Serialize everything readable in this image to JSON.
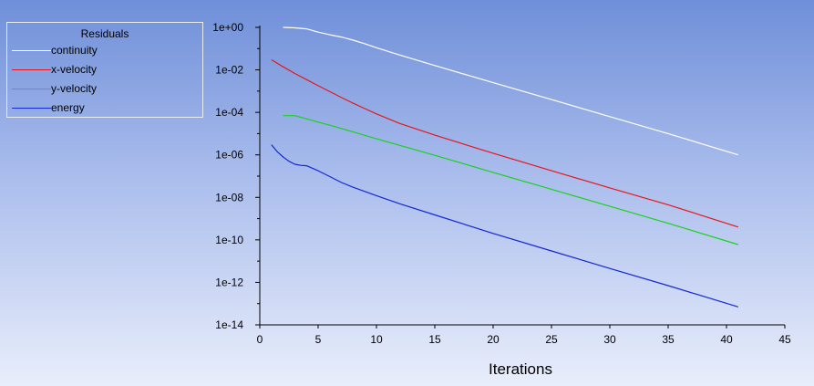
{
  "chart_data": {
    "type": "line",
    "title": "",
    "xlabel": "Iterations",
    "ylabel": "",
    "yscale": "log",
    "xlim": [
      0,
      45
    ],
    "ylim": [
      1e-14,
      1
    ],
    "x_ticks": [
      "0",
      "5",
      "10",
      "15",
      "20",
      "25",
      "30",
      "35",
      "40",
      "45"
    ],
    "y_ticks": [
      "1e+00",
      "1e-02",
      "1e-04",
      "1e-06",
      "1e-08",
      "1e-10",
      "1e-12",
      "1e-14"
    ],
    "grid": false,
    "legend_position": "top-left",
    "legend_title": "Residuals",
    "series": [
      {
        "name": "continuity",
        "color": "#ffffff",
        "x": [
          2,
          3,
          4,
          5,
          6,
          7,
          8,
          9,
          10,
          12,
          15,
          20,
          25,
          30,
          35,
          41
        ],
        "y": [
          1.0,
          0.95,
          0.85,
          0.6,
          0.45,
          0.35,
          0.25,
          0.17,
          0.11,
          0.05,
          0.016,
          0.0025,
          0.0004,
          6.3e-05,
          1e-05,
          1e-06
        ]
      },
      {
        "name": "x-velocity",
        "color": "#e8161b",
        "x": [
          1,
          2,
          3,
          4,
          5,
          6,
          7,
          8,
          9,
          10,
          12,
          15,
          20,
          25,
          30,
          35,
          41
        ],
        "y": [
          0.03,
          0.014,
          0.0068,
          0.0035,
          0.0018,
          0.00095,
          0.0005,
          0.00027,
          0.00015,
          8.5e-05,
          3e-05,
          8.5e-06,
          1.2e-06,
          1.8e-07,
          2.8e-08,
          4.5e-09,
          4e-10
        ]
      },
      {
        "name": "y-velocity",
        "color": "#16d31b",
        "x": [
          2,
          3,
          4,
          5,
          6,
          8,
          10,
          12,
          15,
          20,
          25,
          30,
          35,
          41
        ],
        "y": [
          7e-05,
          7e-05,
          5e-05,
          3.5e-05,
          2.5e-05,
          1.2e-05,
          5.7e-06,
          2.8e-06,
          9.5e-07,
          1.5e-07,
          2.4e-08,
          3.8e-09,
          6e-10,
          6e-11
        ]
      },
      {
        "name": "energy",
        "color": "#1428d6",
        "x": [
          1,
          1.5,
          2,
          2.5,
          3,
          3.5,
          4,
          5,
          6,
          7,
          8,
          10,
          12,
          15,
          20,
          25,
          30,
          35,
          41
        ],
        "y": [
          3e-06,
          1.4e-06,
          8e-07,
          5e-07,
          3.6e-07,
          3.2e-07,
          3.1e-07,
          1.8e-07,
          9.5e-08,
          5e-08,
          3e-08,
          1.2e-08,
          5e-09,
          1.5e-09,
          2e-10,
          3e-11,
          4.5e-12,
          7e-13,
          7e-14
        ]
      }
    ]
  }
}
